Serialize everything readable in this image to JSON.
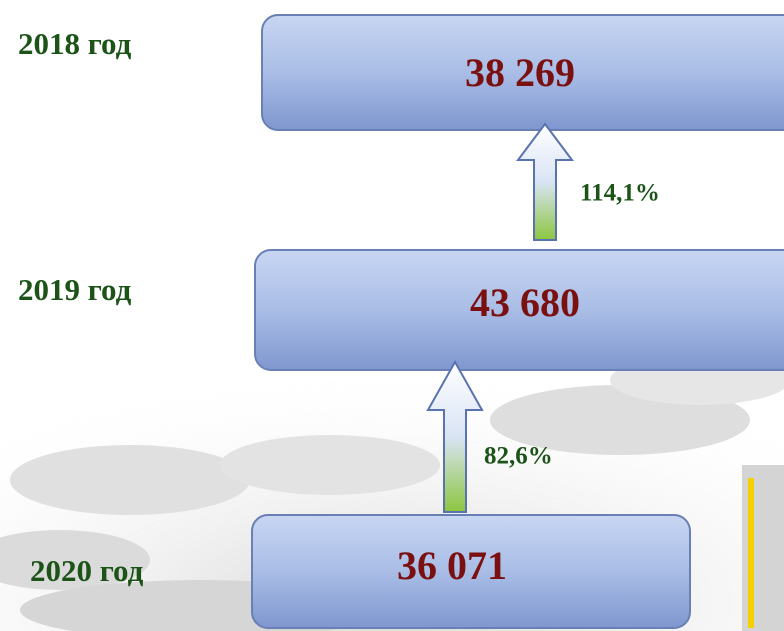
{
  "levels": [
    {
      "year": "2018 год",
      "value": "38 269"
    },
    {
      "year": "2019 год",
      "value": "43 680"
    },
    {
      "year": "2020 год",
      "value": "36 071"
    }
  ],
  "arrows": [
    {
      "label": "114,1%"
    },
    {
      "label": "82,6%"
    }
  ]
}
